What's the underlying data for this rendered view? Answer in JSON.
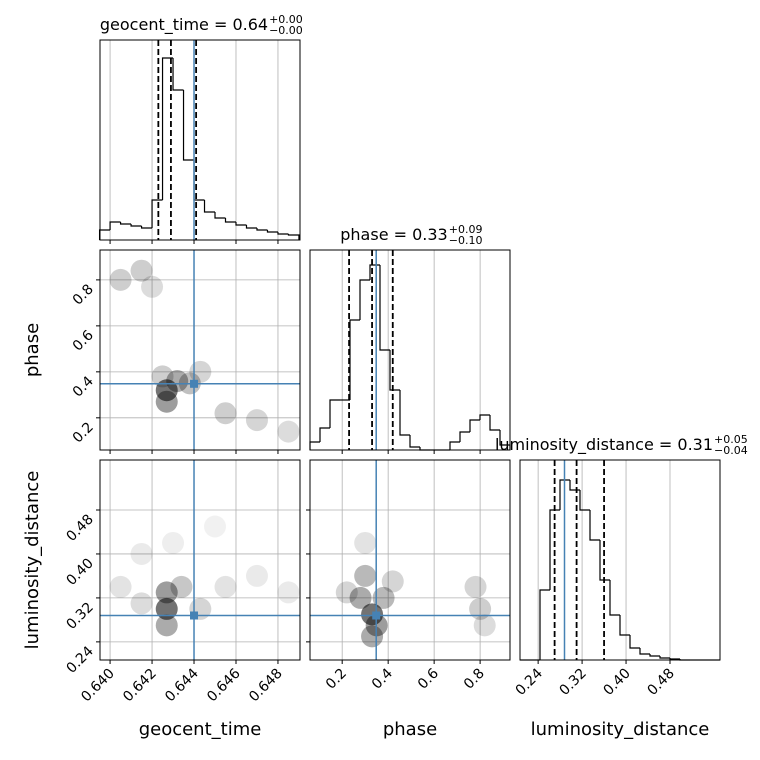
{
  "chart_data": {
    "type": "corner",
    "truth_color": "#4682b4",
    "hist_color": "#000000",
    "grid": true,
    "parameters": [
      {
        "label": "geocent_time",
        "title": "geocent_time = 0.64",
        "plus": "+0.00",
        "minus": "−0.00",
        "lim": [
          0.63952,
          0.64905
        ],
        "ticks": [
          {
            "value": 0.64,
            "label": "0.640"
          },
          0.642,
          0.644,
          0.646,
          0.648
        ],
        "truth": 0.644,
        "quantiles": [
          0.6423,
          0.6429,
          0.6441
        ],
        "ylim": [
          0,
          200
        ],
        "bins": [
          0.6395,
          0.64,
          0.6405,
          0.641,
          0.6415,
          0.642,
          0.6425,
          0.643,
          0.6435,
          0.644,
          0.6445,
          0.645,
          0.6455,
          0.646,
          0.6465,
          0.647,
          0.6475,
          0.648,
          0.6485,
          0.649
        ],
        "counts": [
          10,
          18,
          16,
          14,
          12,
          40,
          182,
          150,
          80,
          40,
          28,
          22,
          18,
          15,
          12,
          10,
          8,
          6,
          5
        ]
      },
      {
        "label": "phase",
        "title": "phase = 0.33",
        "plus": "+0.09",
        "minus": "−0.10",
        "lim": [
          0.06,
          0.93
        ],
        "ticks": [
          0.2,
          0.4,
          0.6,
          0.8
        ],
        "truth": 0.348,
        "quantiles": [
          0.23,
          0.33,
          0.42
        ],
        "ylim": [
          0,
          200
        ],
        "bins": [
          0.06,
          0.1035,
          0.147,
          0.1905,
          0.234,
          0.2775,
          0.321,
          0.3645,
          0.408,
          0.4515,
          0.495,
          0.5385,
          0.582,
          0.6255,
          0.669,
          0.7125,
          0.756,
          0.7995,
          0.843,
          0.8865,
          0.93
        ],
        "counts": [
          8,
          22,
          50,
          50,
          130,
          170,
          185,
          100,
          60,
          15,
          3,
          0,
          0,
          0,
          8,
          18,
          30,
          35,
          20,
          5
        ]
      },
      {
        "label": "luminosity_distance",
        "title": "luminosity_distance = 0.31",
        "plus": "+0.05",
        "minus": "−0.04",
        "lim": [
          0.207,
          0.571
        ],
        "ticks": [
          0.24,
          0.32,
          {
            "value": 0.4,
            "label": "0.40"
          },
          0.48
        ],
        "truth": 0.288,
        "quantiles": [
          0.27,
          0.31,
          0.36
        ],
        "ylim": [
          0,
          200
        ],
        "bins": [
          0.207,
          0.2252,
          0.2434,
          0.2616,
          0.2798,
          0.298,
          0.3162,
          0.3344,
          0.3526,
          0.3708,
          0.389,
          0.4072,
          0.4254,
          0.4436,
          0.4618,
          0.48,
          0.4982,
          0.5164,
          0.5346,
          0.5528,
          0.571
        ],
        "counts": [
          0,
          0,
          70,
          150,
          180,
          170,
          150,
          120,
          80,
          45,
          25,
          12,
          6,
          4,
          2,
          1,
          0,
          0,
          0,
          0
        ]
      }
    ],
    "pairs": [
      {
        "x": 0,
        "y": 1,
        "points": {
          "x": [
            0.6427,
            0.6427,
            0.6432,
            0.6438,
            0.6443,
            0.6425,
            0.6455,
            0.647,
            0.6485,
            0.6405,
            0.6415,
            0.642
          ],
          "y": [
            0.32,
            0.27,
            0.36,
            0.35,
            0.4,
            0.38,
            0.22,
            0.19,
            0.14,
            0.8,
            0.84,
            0.77
          ],
          "weights": [
            1,
            0.7,
            0.6,
            0.45,
            0.3,
            0.35,
            0.35,
            0.3,
            0.25,
            0.35,
            0.35,
            0.25
          ]
        }
      },
      {
        "x": 0,
        "y": 2,
        "points": {
          "x": [
            0.6427,
            0.6427,
            0.6427,
            0.6434,
            0.6443,
            0.6405,
            0.6415,
            0.6455,
            0.647,
            0.6485,
            0.643,
            0.645,
            0.6415
          ],
          "y": [
            0.3,
            0.33,
            0.27,
            0.34,
            0.3,
            0.34,
            0.31,
            0.34,
            0.36,
            0.33,
            0.42,
            0.45,
            0.4
          ],
          "weights": [
            1,
            0.7,
            0.6,
            0.4,
            0.3,
            0.2,
            0.25,
            0.2,
            0.15,
            0.15,
            0.12,
            0.1,
            0.15
          ]
        }
      },
      {
        "x": 1,
        "y": 2,
        "points": {
          "x": [
            0.33,
            0.28,
            0.38,
            0.3,
            0.35,
            0.22,
            0.42,
            0.3,
            0.8,
            0.78,
            0.82,
            0.33
          ],
          "y": [
            0.29,
            0.32,
            0.32,
            0.36,
            0.27,
            0.33,
            0.35,
            0.42,
            0.3,
            0.34,
            0.27,
            0.25
          ],
          "weights": [
            1,
            0.6,
            0.5,
            0.5,
            0.7,
            0.3,
            0.3,
            0.2,
            0.35,
            0.3,
            0.25,
            0.6
          ]
        }
      }
    ]
  }
}
